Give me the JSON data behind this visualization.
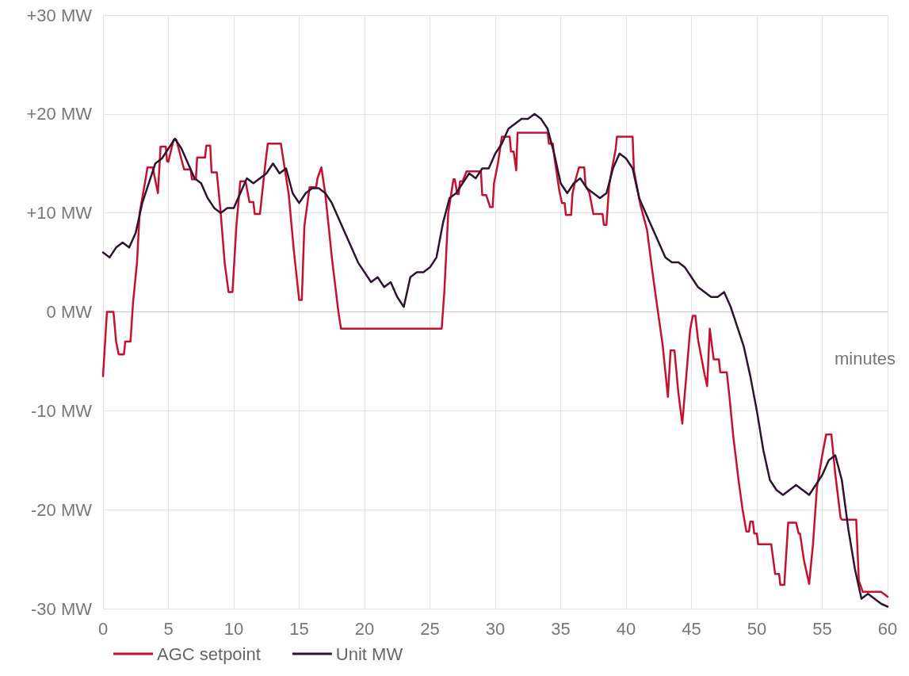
{
  "chart_data": {
    "type": "line",
    "xlabel": "minutes",
    "xlim": [
      0,
      60
    ],
    "xticks": [
      0,
      5,
      10,
      15,
      20,
      25,
      30,
      35,
      40,
      45,
      50,
      55,
      60
    ],
    "ylim": [
      -30,
      30
    ],
    "yticks": [
      {
        "value": -30,
        "label": "-30 MW"
      },
      {
        "value": -20,
        "label": "-20 MW"
      },
      {
        "value": -10,
        "label": "-10 MW"
      },
      {
        "value": 0,
        "label": "0 MW"
      },
      {
        "value": 10,
        "label": "+10 MW"
      },
      {
        "value": 20,
        "label": "+20 MW"
      },
      {
        "value": 30,
        "label": "+30 MW"
      }
    ],
    "grid": true,
    "legend": "bottom left",
    "marker": "none",
    "line_style": "solid",
    "series": [
      {
        "name": "AGC setpoint",
        "color": "#c8102e",
        "x": [
          0,
          0.3,
          0.8,
          1.0,
          1.2,
          1.6,
          1.7,
          2.1,
          2.3,
          2.6,
          2.8,
          3.2,
          3.4,
          3.8,
          4.2,
          4.4,
          4.8,
          4.9,
          5.0,
          5.4,
          5.6,
          6.2,
          6.7,
          6.8,
          7.1,
          7.2,
          7.8,
          7.9,
          8.2,
          8.3,
          8.7,
          9.0,
          9.3,
          9.6,
          9.9,
          10.2,
          10.5,
          10.9,
          11.2,
          11.5,
          11.6,
          12.0,
          12.4,
          12.6,
          13.6,
          14.2,
          14.6,
          15.0,
          15.2,
          15.4,
          15.8,
          16.3,
          16.4,
          16.7,
          17.0,
          17.5,
          18.0,
          18.2,
          25.9,
          26.1,
          26.4,
          26.8,
          26.9,
          27.1,
          27.2,
          27.3,
          27.5,
          27.8,
          28.9,
          29.0,
          29.3,
          29.6,
          29.8,
          29.9,
          30.2,
          30.5,
          31.1,
          31.2,
          31.4,
          31.6,
          31.7,
          34.0,
          34.1,
          34.4,
          34.5,
          34.9,
          35.1,
          35.3,
          35.4,
          35.8,
          35.9,
          36.1,
          36.4,
          36.8,
          36.9,
          37.2,
          37.5,
          38.2,
          38.3,
          38.5,
          38.7,
          38.9,
          39.2,
          39.3,
          40.5,
          40.6,
          41.1,
          41.6,
          42.0,
          42.3,
          42.8,
          43.2,
          43.4,
          43.7,
          44.0,
          44.3,
          44.9,
          45.1,
          45.3,
          45.5,
          46.0,
          46.2,
          46.4,
          46.7,
          47.1,
          47.2,
          47.7,
          47.9,
          48.2,
          48.6,
          48.9,
          49.2,
          49.4,
          49.5,
          49.7,
          49.8,
          50.0,
          50.1,
          51.1,
          51.4,
          51.7,
          51.8,
          52.1,
          52.4,
          53.0,
          53.2,
          53.3,
          53.6,
          54.0,
          54.3,
          54.6,
          55.0,
          55.3,
          55.7,
          56.0,
          56.4,
          56.5,
          57.6,
          57.8,
          58.1,
          59.5,
          60
        ],
        "values": [
          -6.5,
          0,
          0,
          -3,
          -4.3,
          -4.3,
          -3,
          -3,
          1,
          5,
          10,
          13,
          14.6,
          14.6,
          12,
          16.7,
          16.7,
          15.2,
          15.2,
          17.4,
          17.4,
          14.4,
          14.4,
          13.4,
          13.4,
          15.6,
          15.6,
          16.8,
          16.8,
          14.1,
          14.1,
          10,
          5,
          2,
          2,
          8.7,
          13.2,
          13.2,
          11.1,
          11.1,
          9.9,
          9.9,
          14.8,
          17,
          17,
          11.9,
          6.1,
          1.2,
          1.2,
          8.7,
          12.6,
          12.6,
          13.5,
          14.6,
          11.9,
          5.5,
          0,
          -1.7,
          -1.7,
          2,
          10,
          13.4,
          13.4,
          11.9,
          11.9,
          13.2,
          13.2,
          14.2,
          14.2,
          11.8,
          11.8,
          10.6,
          10.6,
          13,
          15,
          17.7,
          17.7,
          16.2,
          16.2,
          14.3,
          18.1,
          18.1,
          17,
          17,
          15.8,
          12.2,
          11,
          11,
          9.8,
          9.8,
          11.9,
          13.2,
          14.6,
          14.6,
          12.8,
          12,
          9.9,
          9.9,
          8.8,
          8.8,
          12.7,
          14.3,
          16.4,
          17.7,
          17.7,
          14.3,
          10.8,
          8.3,
          4.2,
          1.3,
          -3.4,
          -8.6,
          -3.9,
          -3.9,
          -8.2,
          -11.3,
          -1.8,
          -0.4,
          -0.4,
          -2.8,
          -6.3,
          -7.5,
          -1.7,
          -4.8,
          -4.8,
          -6.1,
          -6.1,
          -8.5,
          -12.6,
          -17,
          -19.9,
          -22.2,
          -22.2,
          -21.2,
          -21.2,
          -22.4,
          -22.4,
          -23.5,
          -23.5,
          -26.5,
          -26.5,
          -27.6,
          -27.6,
          -21.3,
          -21.3,
          -22.4,
          -22.4,
          -25.1,
          -27.5,
          -23.4,
          -17.7,
          -14.5,
          -12.4,
          -12.4,
          -16.4,
          -20.8,
          -21,
          -21,
          -27.2,
          -28.3,
          -28.3,
          -28.8
        ]
      },
      {
        "name": "Unit MW",
        "color": "#2e1433",
        "x": [
          0,
          0.5,
          1,
          1.5,
          2,
          2.5,
          3,
          3.5,
          4,
          4.5,
          5,
          5.5,
          6,
          6.5,
          7,
          7.5,
          8,
          8.5,
          9,
          9.5,
          10,
          10.5,
          11,
          11.5,
          12,
          12.5,
          13,
          13.5,
          14,
          14.5,
          15,
          15.5,
          16,
          16.5,
          17,
          17.5,
          18,
          18.5,
          19,
          19.5,
          20,
          20.5,
          21,
          21.5,
          22,
          22.5,
          23,
          23.5,
          24,
          24.5,
          25,
          25.5,
          26,
          26.5,
          27,
          27.5,
          28,
          28.5,
          29,
          29.5,
          30,
          30.5,
          31,
          31.5,
          32,
          32.5,
          33,
          33.5,
          34,
          34.5,
          35,
          35.5,
          36,
          36.5,
          37,
          37.5,
          38,
          38.5,
          39,
          39.5,
          40,
          40.5,
          41,
          41.5,
          42,
          42.5,
          43,
          43.5,
          44,
          44.5,
          45,
          45.5,
          46,
          46.5,
          47,
          47.5,
          48,
          48.5,
          49,
          49.5,
          50,
          50.5,
          51,
          51.5,
          52,
          52.5,
          53,
          53.5,
          54,
          54.5,
          55,
          55.5,
          56,
          56.5,
          57,
          57.5,
          58,
          58.5,
          59,
          59.5,
          60
        ],
        "values": [
          6,
          5.5,
          6.5,
          7,
          6.5,
          8,
          11,
          13,
          15,
          15.5,
          16.5,
          17.5,
          16.5,
          15,
          13.5,
          13,
          11.5,
          10.5,
          10,
          10.5,
          10.5,
          12,
          13.5,
          13,
          13.5,
          14,
          15,
          14,
          14.5,
          12,
          11,
          12,
          12.5,
          12.5,
          12,
          11,
          9.5,
          8,
          6.5,
          5,
          4,
          3,
          3.5,
          2.5,
          3,
          1.5,
          0.5,
          3.5,
          4,
          4,
          4.5,
          5.5,
          9,
          11.5,
          12,
          13,
          14,
          13.5,
          14.5,
          14.5,
          16,
          17,
          18.5,
          19,
          19.5,
          19.5,
          20,
          19.5,
          18.5,
          16,
          13,
          12,
          13,
          13.5,
          12.5,
          12,
          11.5,
          12,
          14.5,
          16,
          15.5,
          14.5,
          11.5,
          10,
          8.5,
          7,
          5.5,
          5,
          5,
          4.5,
          3.5,
          2.5,
          2,
          1.5,
          1.5,
          2,
          0.5,
          -1.5,
          -3.5,
          -6.5,
          -10,
          -14,
          -17,
          -18,
          -18.5,
          -18,
          -17.5,
          -18,
          -18.5,
          -17.5,
          -16.5,
          -15,
          -14.5,
          -17,
          -22,
          -26,
          -29,
          -28.5,
          -29,
          -29.5,
          -29.8
        ]
      }
    ]
  }
}
